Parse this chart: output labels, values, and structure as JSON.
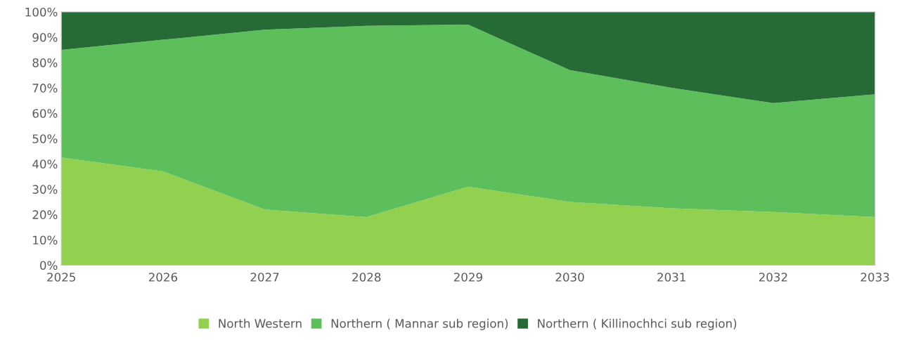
{
  "chart_data": {
    "type": "area",
    "stacked": true,
    "categories": [
      "2025",
      "2026",
      "2027",
      "2028",
      "2029",
      "2030",
      "2031",
      "2032",
      "2033"
    ],
    "series": [
      {
        "name": "North Western",
        "color": "#92d050",
        "values": [
          42.5,
          37,
          22,
          19,
          31,
          25,
          22.5,
          21,
          19
        ]
      },
      {
        "name": "Northern ( Mannar sub region)",
        "color": "#5cbf5c",
        "values": [
          42.5,
          52,
          71,
          75.5,
          64,
          52,
          47.5,
          43,
          48.5
        ]
      },
      {
        "name": "Northern ( Killinochhci sub region)",
        "color": "#266b35",
        "values": [
          15,
          11,
          7,
          5.5,
          5,
          23,
          30,
          36,
          32.5
        ]
      }
    ],
    "ylim": [
      0,
      100
    ],
    "yticks": [
      {
        "value": 0,
        "label": "0%"
      },
      {
        "value": 10,
        "label": "10%"
      },
      {
        "value": 20,
        "label": "20%"
      },
      {
        "value": 30,
        "label": "30%"
      },
      {
        "value": 40,
        "label": "40%"
      },
      {
        "value": 50,
        "label": "50%"
      },
      {
        "value": 60,
        "label": "60%"
      },
      {
        "value": 70,
        "label": "70%"
      },
      {
        "value": 80,
        "label": "80%"
      },
      {
        "value": 90,
        "label": "90%"
      },
      {
        "value": 100,
        "label": "100%"
      }
    ],
    "grid": false,
    "legend": "bottom"
  }
}
